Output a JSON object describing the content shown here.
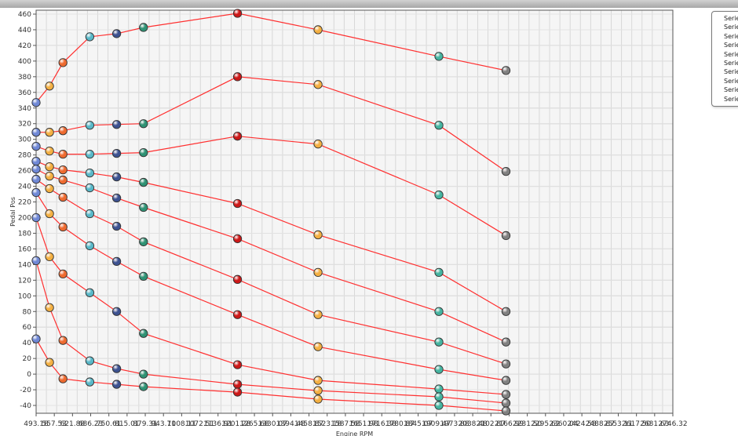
{
  "chart_data": {
    "type": "line",
    "xlabel": "Engine RPM",
    "ylabel": "Pedal Pos",
    "xlim": [
      493.185,
      3546.32
    ],
    "ylim": [
      -50,
      465
    ],
    "x_tick_labels": [
      "493.18",
      "557.53",
      "621.88",
      "686.23",
      "750.61",
      "815.01",
      "879.31",
      "943.71",
      "1008.11",
      "1072.51",
      "1136.91",
      "1201.28",
      "1265.68",
      "1330.07",
      "1394.48",
      "1458.87",
      "1523.18",
      "1587.58",
      "1651.98",
      "1716.38",
      "1780.87",
      "1845.07",
      "1909.47",
      "1973.88",
      "2038.48",
      "2102.87",
      "2166.99",
      "2231.50",
      "2295.62",
      "2360.04",
      "2424.58",
      "2488.87",
      "2553.11",
      "2617.50",
      "2681.63",
      "2746.32"
    ],
    "y_ticks": [
      -40,
      -20,
      0,
      20,
      40,
      60,
      80,
      100,
      120,
      140,
      160,
      180,
      200,
      220,
      240,
      260,
      280,
      300,
      320,
      340,
      360,
      380,
      400,
      420,
      440,
      460
    ],
    "x": [
      493.185,
      557.5,
      621.88,
      750.61,
      879.31,
      1008.1,
      1458.87,
      1845.07,
      2424.58,
      2746.32
    ],
    "series": [
      {
        "name": "Series1",
        "values": [
          347,
          368,
          398,
          431,
          435,
          443,
          461,
          440,
          406,
          388
        ]
      },
      {
        "name": "Series2",
        "values": [
          309,
          309,
          311,
          318,
          319,
          320,
          380,
          370,
          318,
          259
        ]
      },
      {
        "name": "Series3",
        "values": [
          291,
          285,
          281,
          281,
          282,
          283,
          304,
          294,
          229,
          177
        ]
      },
      {
        "name": "Series4",
        "values": [
          272,
          265,
          261,
          257,
          252,
          245,
          218,
          178,
          130,
          80
        ]
      },
      {
        "name": "Series5",
        "values": [
          262,
          253,
          248,
          238,
          225,
          213,
          173,
          130,
          80,
          41
        ]
      },
      {
        "name": "Series6",
        "values": [
          249,
          237,
          226,
          205,
          189,
          169,
          121,
          76,
          41,
          13
        ]
      },
      {
        "name": "Series7",
        "values": [
          232,
          205,
          188,
          164,
          144,
          125,
          76,
          35,
          6,
          -8
        ]
      },
      {
        "name": "Series8",
        "values": [
          200,
          150,
          128,
          104,
          80,
          52,
          12,
          -8,
          -19,
          -26
        ]
      },
      {
        "name": "Series9",
        "values": [
          145,
          85,
          43,
          17,
          7,
          0,
          -13,
          -21,
          -29,
          -37
        ]
      },
      {
        "name": "Series10",
        "values": [
          45,
          15,
          -6,
          -10,
          -13,
          -16,
          -23,
          -32,
          -40,
          -47
        ]
      }
    ],
    "point_colors": [
      "#6f88d6",
      "#f4b042",
      "#ee6a2f",
      "#58b8c8",
      "#3d5290",
      "#2f9274",
      "#cc1818",
      "#f4b042",
      "#44b4a0",
      "#808080"
    ],
    "line_color": "#ff3030",
    "grid": true,
    "legend_position": "top-right"
  },
  "legend": {
    "items": [
      "Serie",
      "Serie",
      "Serie",
      "Serie",
      "Serie",
      "Serie",
      "Serie",
      "Serie",
      "Serie",
      "Serie"
    ]
  }
}
